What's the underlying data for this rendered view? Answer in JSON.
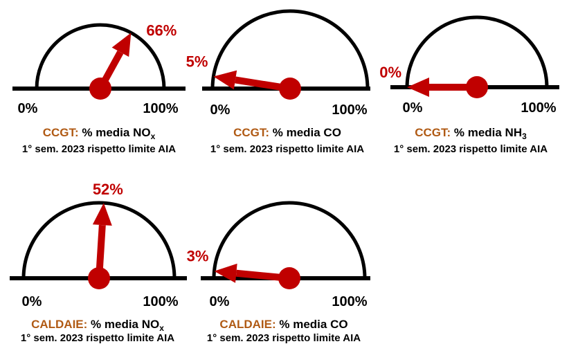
{
  "chart_data": [
    {
      "type": "gauge",
      "value_percent": 66,
      "value_label": "66%",
      "min_label": "0%",
      "max_label": "100%",
      "source": "CCGT:",
      "metric": "% media NO",
      "metric_sub": "x",
      "period": "1° sem. 2023 rispetto limite AIA"
    },
    {
      "type": "gauge",
      "value_percent": 5,
      "value_label": "5%",
      "min_label": "0%",
      "max_label": "100%",
      "source": "CCGT:",
      "metric": "% media CO",
      "metric_sub": "",
      "period": "1° sem. 2023 rispetto limite AIA"
    },
    {
      "type": "gauge",
      "value_percent": 0,
      "value_label": "0%",
      "min_label": "0%",
      "max_label": "100%",
      "source": "CCGT:",
      "metric": "% media NH",
      "metric_sub": "3",
      "period": "1° sem. 2023 rispetto limite AIA"
    },
    {
      "type": "gauge",
      "value_percent": 52,
      "value_label": "52%",
      "min_label": "0%",
      "max_label": "100%",
      "source": "CALDAIE:",
      "metric": "% media NO",
      "metric_sub": "x",
      "period": "1° sem. 2023 rispetto limite AIA"
    },
    {
      "type": "gauge",
      "value_percent": 3,
      "value_label": "3%",
      "min_label": "0%",
      "max_label": "100%",
      "source": "CALDAIE:",
      "metric": "% media CO",
      "metric_sub": "",
      "period": "1° sem. 2023 rispetto limite AIA"
    }
  ],
  "colors": {
    "needle": "#c00000",
    "dial": "#000000",
    "source_label": "#b05a14",
    "value_label": "#c00000"
  }
}
